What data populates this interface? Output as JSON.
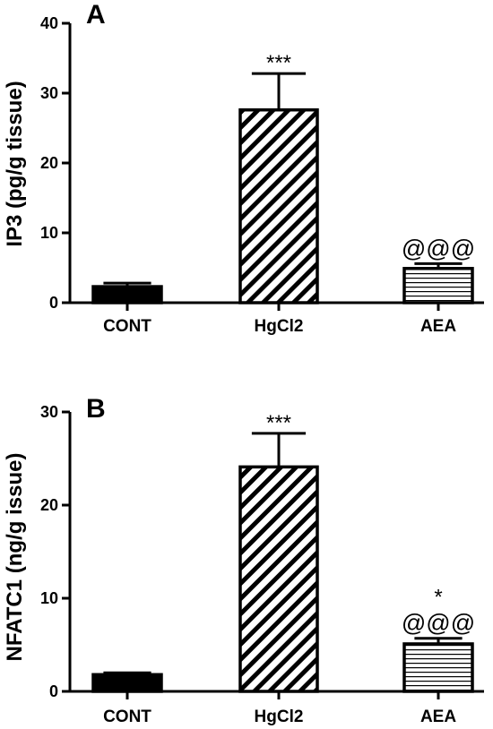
{
  "chart_data": [
    {
      "type": "bar",
      "panel_label": "A",
      "ylabel": "IP3 (pg/g tissue)",
      "categories": [
        "CONT",
        "HgCl2",
        "AEA"
      ],
      "values": [
        2.3,
        27.6,
        4.9
      ],
      "errors": [
        0.5,
        5.2,
        0.7
      ],
      "ylim": [
        0,
        40
      ],
      "yticks": [
        "0",
        "10",
        "20",
        "30",
        "40"
      ],
      "fills": [
        "solid",
        "diagonal-hatch",
        "horizontal-hatch"
      ],
      "annotations": [
        {
          "category": "HgCl2",
          "lines": [
            "***"
          ]
        },
        {
          "category": "AEA",
          "lines": [
            "@@@"
          ]
        }
      ]
    },
    {
      "type": "bar",
      "panel_label": "B",
      "ylabel": "NFATC1 (ng/g issue)",
      "categories": [
        "CONT",
        "HgCl2",
        "AEA"
      ],
      "values": [
        1.8,
        24.1,
        5.1
      ],
      "errors": [
        0.2,
        3.6,
        0.6
      ],
      "ylim": [
        0,
        30
      ],
      "yticks": [
        "0",
        "10",
        "20",
        "30"
      ],
      "fills": [
        "solid",
        "diagonal-hatch",
        "horizontal-hatch"
      ],
      "annotations": [
        {
          "category": "HgCl2",
          "lines": [
            "***"
          ]
        },
        {
          "category": "AEA",
          "lines": [
            "*",
            "@@@"
          ]
        }
      ]
    }
  ]
}
